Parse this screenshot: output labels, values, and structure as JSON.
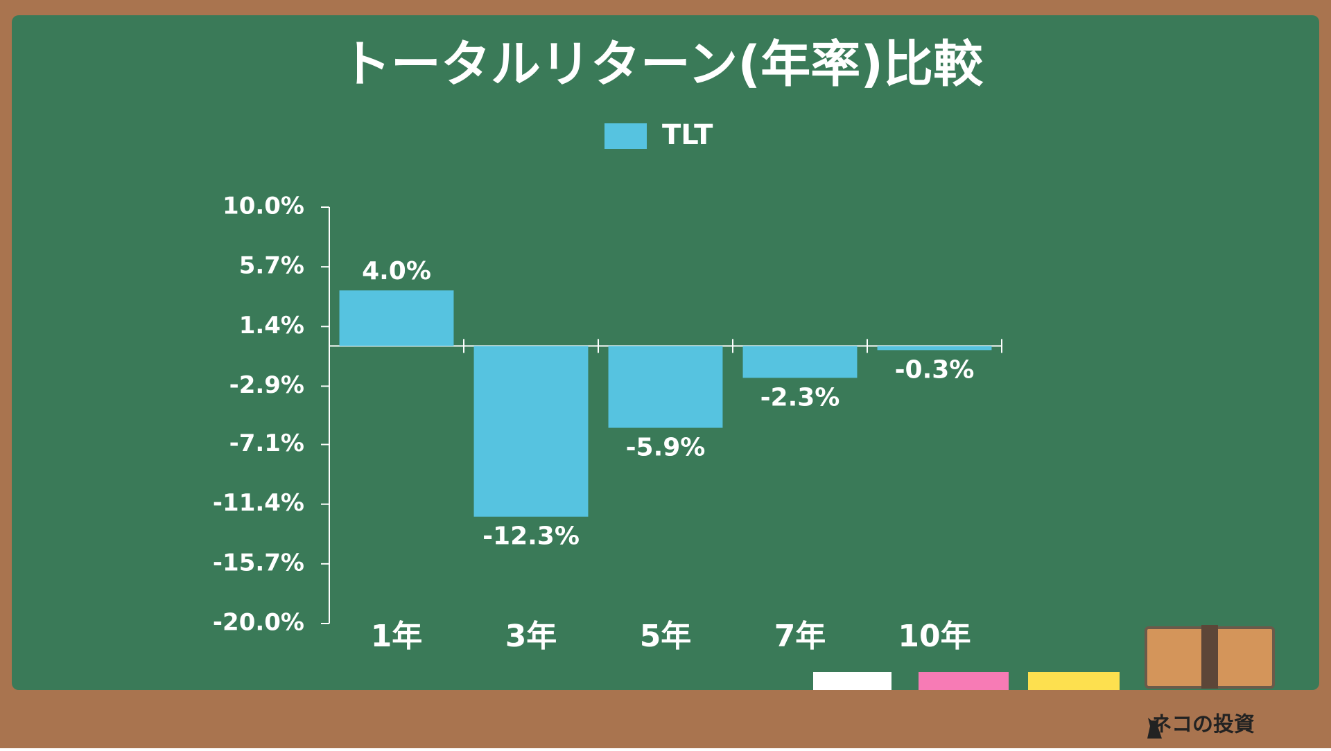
{
  "chart_data": {
    "type": "bar",
    "title": "トータルリターン(年率)比較",
    "categories": [
      "1年",
      "3年",
      "5年",
      "7年",
      "10年"
    ],
    "series": [
      {
        "name": "TLT",
        "color": "#56c3e0",
        "values": [
          4.0,
          -12.3,
          -5.9,
          -2.3,
          -0.3
        ],
        "value_labels": [
          "4.0%",
          "-12.3%",
          "-5.9%",
          "-2.3%",
          "-0.3%"
        ]
      }
    ],
    "ylim": [
      -20,
      10
    ],
    "yticks": [
      {
        "value": 10,
        "label": "10.0%"
      },
      {
        "value": 5.7,
        "label": "5.7%"
      },
      {
        "value": 1.4,
        "label": "1.4%"
      },
      {
        "value": -2.9,
        "label": "-2.9%"
      },
      {
        "value": -7.1,
        "label": "-7.1%"
      },
      {
        "value": -11.4,
        "label": "-11.4%"
      },
      {
        "value": -15.7,
        "label": "-15.7%"
      },
      {
        "value": -20,
        "label": "-20.0%"
      }
    ],
    "grid": false,
    "legend": "top"
  },
  "brand": "ネコの投資"
}
